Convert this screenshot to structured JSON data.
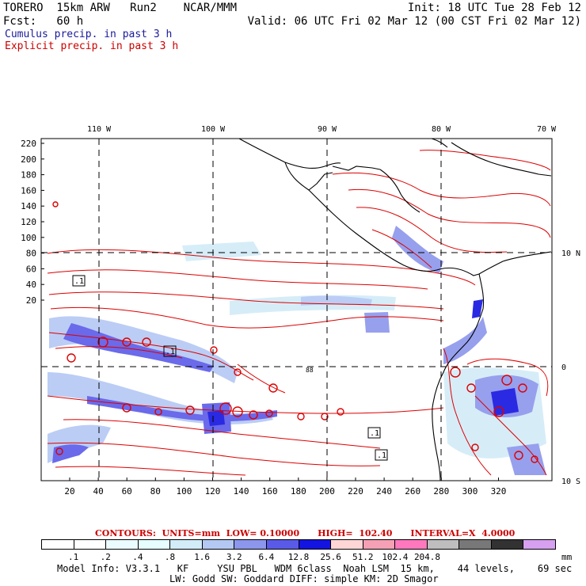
{
  "header": {
    "title_line": "TORERO  15km ARW   Run2    NCAR/MMM",
    "init": "Init: 18 UTC Tue 28 Feb 12",
    "fcst": "Fcst:   60 h",
    "valid": "Valid: 06 UTC Fri 02 Mar 12 (00 CST Fri 02 Mar 12)",
    "legend_cumulus": "Cumulus precip. in past 3 h",
    "legend_explicit": "Explicit precip. in past 3 h"
  },
  "map": {
    "lon_labels": [
      "110 W",
      "100 W",
      "90 W",
      "80 W",
      "70 W"
    ],
    "lat_labels": [
      "10 N",
      "0",
      "10 S"
    ],
    "y_ticks": [
      "220",
      "200",
      "180",
      "160",
      "140",
      "120",
      "100",
      "80",
      "60",
      "40",
      "20"
    ],
    "x_ticks": [
      "20",
      "40",
      "60",
      "80",
      "100",
      "120",
      "140",
      "160",
      "180",
      "200",
      "220",
      "240",
      "260",
      "280",
      "300",
      "320"
    ],
    "low_markers": [
      ".1",
      ".1",
      ".1",
      ".1"
    ],
    "high_marker": "88"
  },
  "contour_info": "CONTOURS:  UNITS=mm  LOW= 0.10000      HIGH=  102.40      INTERVAL=X  4.0000",
  "colorbar": {
    "colors": [
      "#ffffff",
      "#ffffff",
      "#ebfbff",
      "#e6fffe",
      "#d2ecf8",
      "#b4c8f4",
      "#8c96ec",
      "#5a5ae8",
      "#1414e0",
      "#ffd6d6",
      "#f5a0b4",
      "#ff78be",
      "#bebebe",
      "#787878",
      "#323232",
      "#d7a0f0"
    ],
    "labels": [
      ".1",
      ".2",
      ".4",
      ".8",
      "1.6",
      "3.2",
      "6.4",
      "12.8",
      "25.6",
      "51.2",
      "102.4",
      "204.8"
    ],
    "unit": "mm"
  },
  "model_info_1": "Model Info: V3.3.1   KF     YSU PBL   WDM 6class  Noah LSM  15 km,    44 levels,    69 sec",
  "model_info_2": "LW: Godd SW: Goddard DIFF: simple KM: 2D Smagor"
}
